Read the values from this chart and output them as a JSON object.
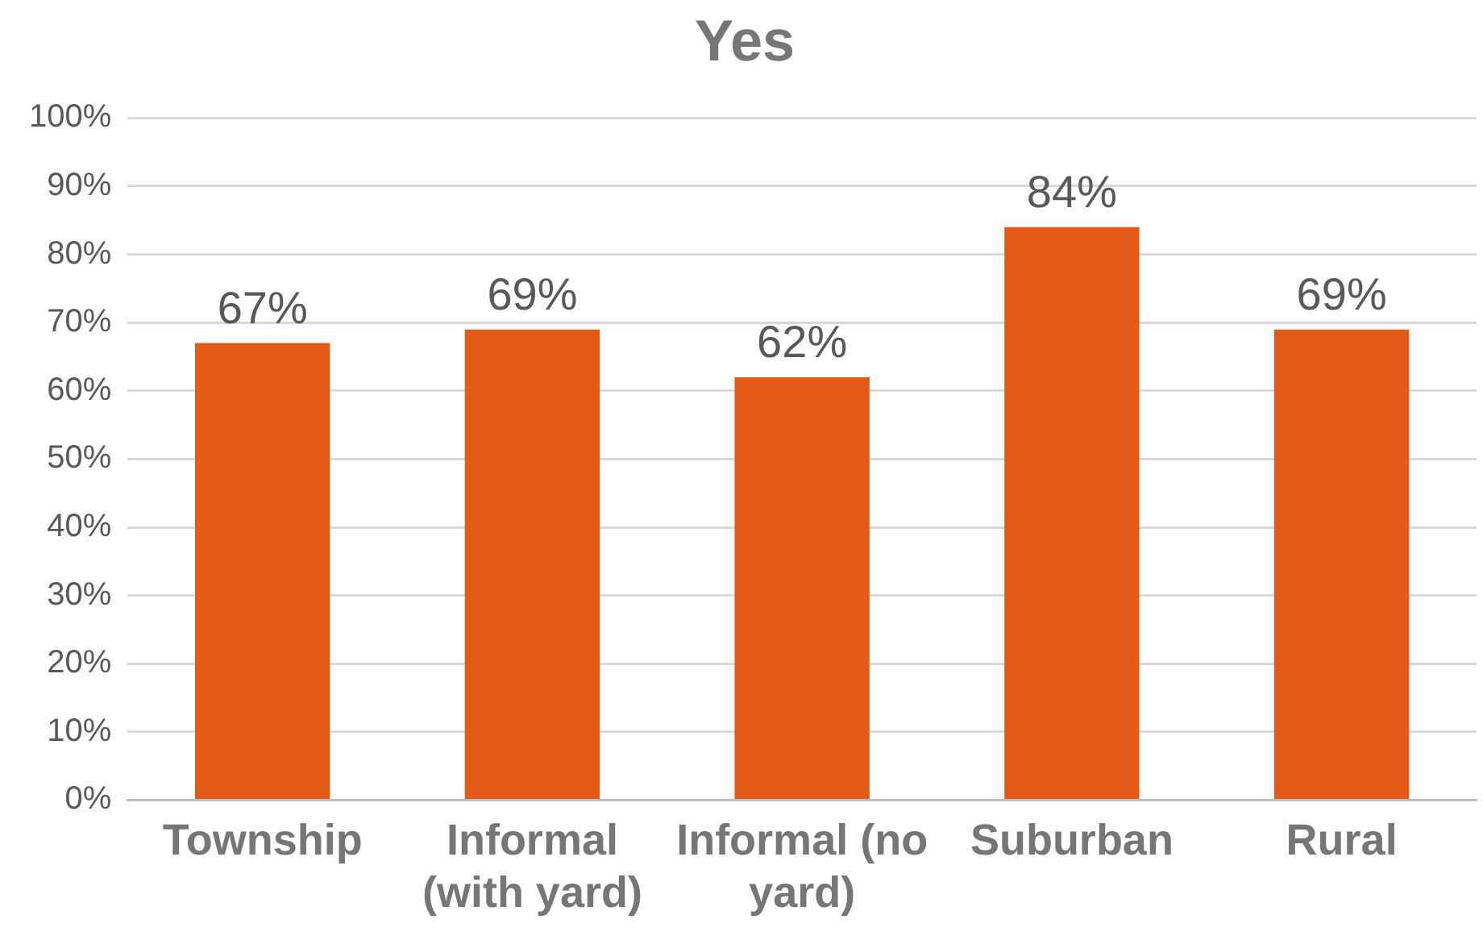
{
  "chart_data": {
    "type": "bar",
    "title": "Yes",
    "categories": [
      "Township",
      "Informal (with yard)",
      "Informal (no yard)",
      "Suburban",
      "Rural"
    ],
    "values": [
      67,
      69,
      62,
      84,
      69
    ],
    "value_labels": [
      "67%",
      "69%",
      "62%",
      "84%",
      "69%"
    ],
    "color": "#e35b17",
    "ylim": [
      0,
      100
    ],
    "yticks": [
      {
        "value": 0,
        "label": "0%"
      },
      {
        "value": 10,
        "label": "10%"
      },
      {
        "value": 20,
        "label": "20%"
      },
      {
        "value": 30,
        "label": "30%"
      },
      {
        "value": 40,
        "label": "40%"
      },
      {
        "value": 50,
        "label": "50%"
      },
      {
        "value": 60,
        "label": "60%"
      },
      {
        "value": 70,
        "label": "70%"
      },
      {
        "value": 80,
        "label": "80%"
      },
      {
        "value": 90,
        "label": "90%"
      },
      {
        "value": 100,
        "label": "100%"
      }
    ],
    "grid": "y",
    "legend": false
  }
}
